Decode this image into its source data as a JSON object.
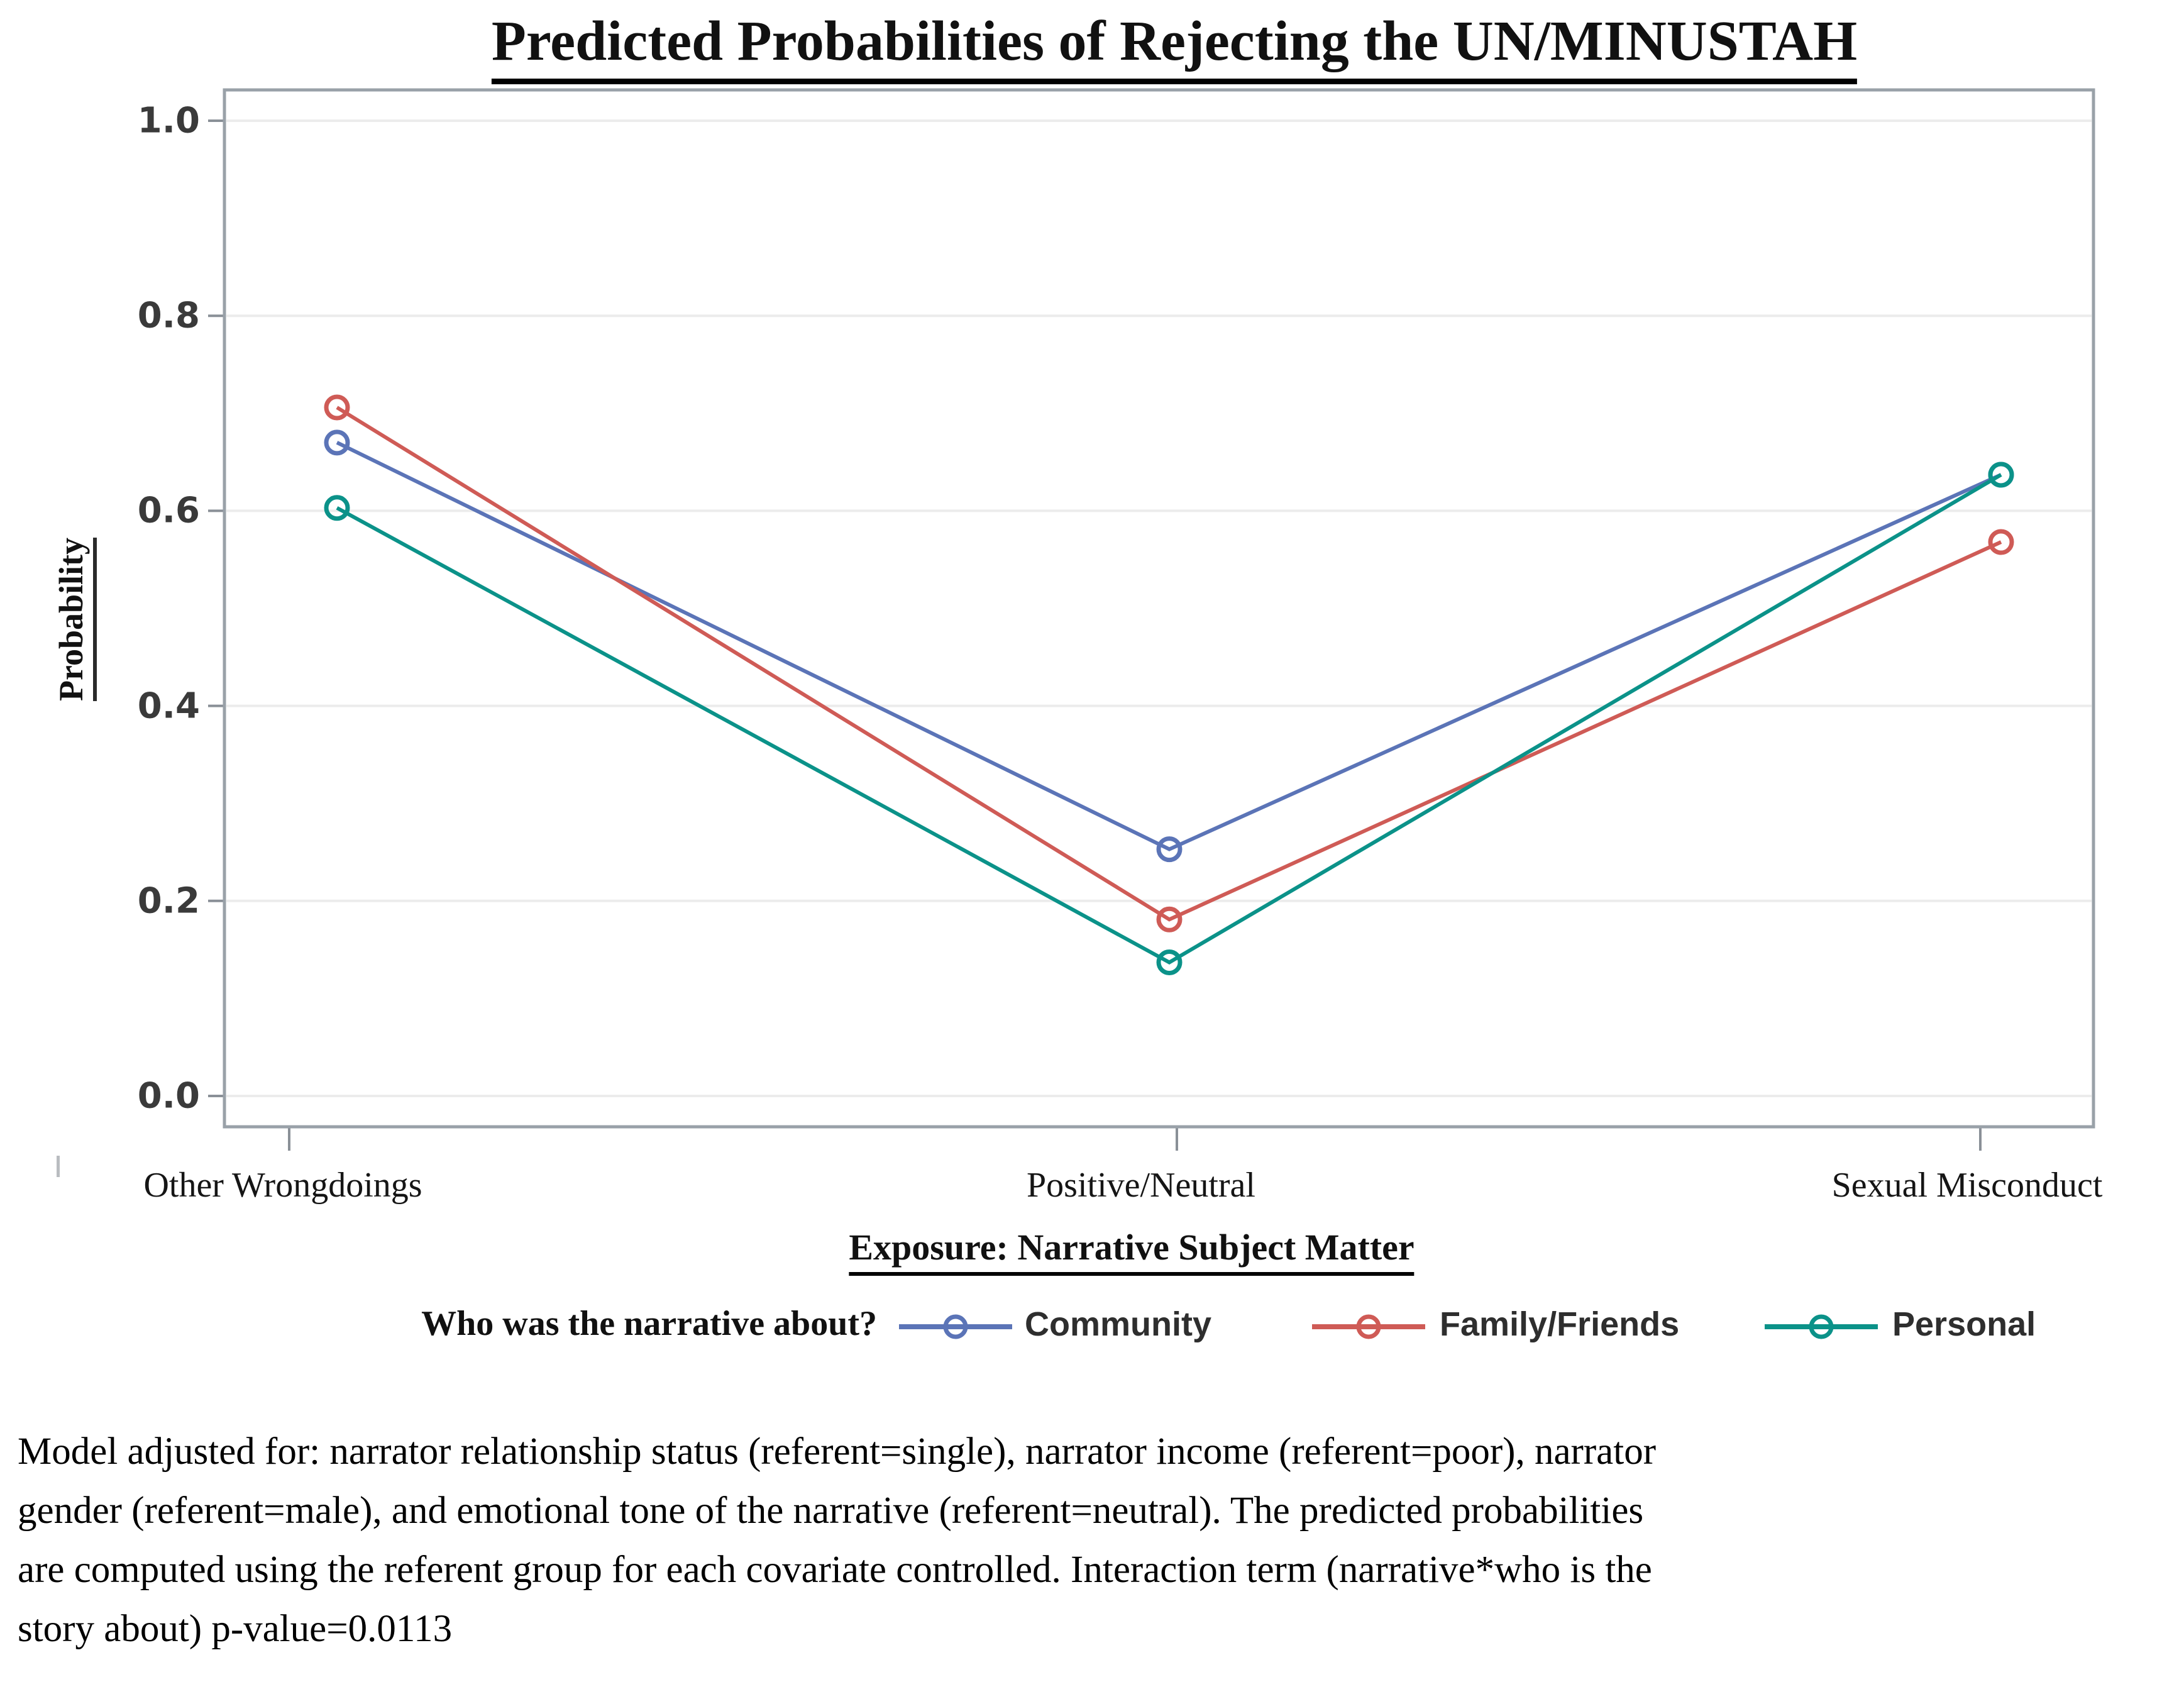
{
  "title": "Predicted Probabilities of Rejecting the UN/MINUSTAH",
  "y_axis": {
    "label": "Probability",
    "tick_labels": [
      "1.0",
      "0.8",
      "0.6",
      "0.4",
      "0.2",
      "0.0"
    ]
  },
  "x_axis": {
    "label": "Exposure: Narrative Subject Matter",
    "categories": [
      "Other Wrongdoings",
      "Positive/Neutral",
      "Sexual Misconduct"
    ]
  },
  "legend": {
    "prompt": "Who was the narrative about?"
  },
  "footnote_lines": [
    "Model adjusted for: narrator relationship status (referent=single), narrator income (referent=poor), narrator",
    "gender (referent=male), and emotional tone of the narrative (referent=neutral). The predicted probabilities",
    "are computed using the referent group for each covariate controlled. Interaction term (narrative*who is the",
    "story about) p-value=0.0113"
  ],
  "colors": {
    "axis_frame": "#99a1a8",
    "gridline": "#ececec",
    "tick": "#8a9097"
  },
  "chart_data": {
    "type": "line",
    "title": "Predicted Probabilities of Rejecting the UN/MINUSTAH",
    "xlabel": "Exposure: Narrative Subject Matter",
    "ylabel": "Probability",
    "categories": [
      "Other Wrongdoings",
      "Positive/Neutral",
      "Sexual Misconduct"
    ],
    "series": [
      {
        "name": "Community",
        "color": "#5B74B7",
        "values": [
          0.67,
          0.253,
          0.637
        ]
      },
      {
        "name": "Family/Friends",
        "color": "#CF5B56",
        "values": [
          0.706,
          0.181,
          0.568
        ]
      },
      {
        "name": "Personal",
        "color": "#0B9289",
        "values": [
          0.603,
          0.137,
          0.637
        ]
      }
    ],
    "ylim": [
      0.0,
      1.0
    ],
    "ytick_step": 0.2,
    "grid": "horizontal",
    "marker": "open-circle",
    "legend_position": "bottom",
    "legend_prompt": "Who was the narrative about?"
  }
}
